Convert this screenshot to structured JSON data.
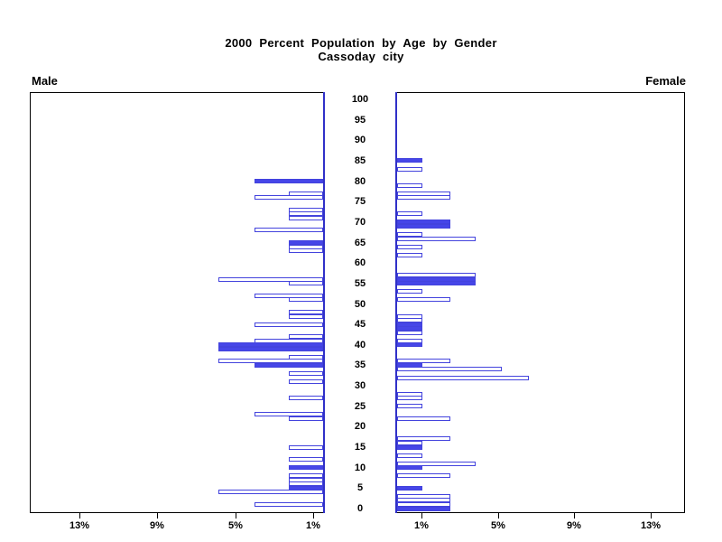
{
  "header": {
    "line1": "2000 Percent Population by Age by Gender",
    "line2": "Cassoday city"
  },
  "panels": {
    "male_label": "Male",
    "female_label": "Female"
  },
  "colors": {
    "bar_fill_blue": "#4646e8",
    "bar_outline_blue": "#4343dd",
    "axis_line_blue": "#3030c8",
    "frame_black": "#000000",
    "background": "#ffffff"
  },
  "chart_data": {
    "type": "bar",
    "variant": "population-pyramid",
    "title": "2000 Percent Population by Age by Gender",
    "subtitle": "Cassoday city",
    "orientation": "horizontal, mirrored; male bars grow right-to-left, female bars grow left-to-right",
    "age_axis": {
      "label_position": "center",
      "min": 0,
      "max": 100,
      "tick_step": 5
    },
    "pct_axis": {
      "tick_values": [
        1,
        5,
        9,
        13
      ],
      "tick_labels": [
        "1%",
        "5%",
        "9%",
        "13%"
      ],
      "max_pct": 15.5,
      "grid": false
    },
    "legend": "none; solid blue = highlighted ages, white with blue outline = other ages",
    "series": [
      {
        "name": "Male",
        "unit": "percent",
        "bars": [
          {
            "age": 80,
            "pct": 3.6,
            "filled": true
          },
          {
            "age": 77,
            "pct": 1.8,
            "filled": false
          },
          {
            "age": 76,
            "pct": 3.6,
            "filled": false
          },
          {
            "age": 73,
            "pct": 1.8,
            "filled": false
          },
          {
            "age": 72,
            "pct": 1.8,
            "filled": false
          },
          {
            "age": 71,
            "pct": 1.8,
            "filled": false
          },
          {
            "age": 68,
            "pct": 3.6,
            "filled": false
          },
          {
            "age": 65,
            "pct": 1.8,
            "filled": true
          },
          {
            "age": 64,
            "pct": 1.8,
            "filled": false
          },
          {
            "age": 63,
            "pct": 1.8,
            "filled": false
          },
          {
            "age": 56,
            "pct": 5.5,
            "filled": false
          },
          {
            "age": 55,
            "pct": 1.8,
            "filled": false
          },
          {
            "age": 52,
            "pct": 3.6,
            "filled": false
          },
          {
            "age": 51,
            "pct": 1.8,
            "filled": false
          },
          {
            "age": 48,
            "pct": 1.8,
            "filled": false
          },
          {
            "age": 47,
            "pct": 1.8,
            "filled": false
          },
          {
            "age": 45,
            "pct": 3.6,
            "filled": false
          },
          {
            "age": 42,
            "pct": 1.8,
            "filled": false
          },
          {
            "age": 41,
            "pct": 3.6,
            "filled": false
          },
          {
            "age": 40,
            "pct": 5.5,
            "filled": true
          },
          {
            "age": 39,
            "pct": 5.5,
            "filled": true
          },
          {
            "age": 37,
            "pct": 1.8,
            "filled": false
          },
          {
            "age": 36,
            "pct": 5.5,
            "filled": false
          },
          {
            "age": 35,
            "pct": 3.6,
            "filled": true
          },
          {
            "age": 33,
            "pct": 1.8,
            "filled": false
          },
          {
            "age": 31,
            "pct": 1.8,
            "filled": false
          },
          {
            "age": 27,
            "pct": 1.8,
            "filled": false
          },
          {
            "age": 23,
            "pct": 3.6,
            "filled": false
          },
          {
            "age": 22,
            "pct": 1.8,
            "filled": false
          },
          {
            "age": 15,
            "pct": 1.8,
            "filled": false
          },
          {
            "age": 12,
            "pct": 1.8,
            "filled": false
          },
          {
            "age": 10,
            "pct": 1.8,
            "filled": true
          },
          {
            "age": 8,
            "pct": 1.8,
            "filled": false
          },
          {
            "age": 7,
            "pct": 1.8,
            "filled": false
          },
          {
            "age": 6,
            "pct": 1.8,
            "filled": false
          },
          {
            "age": 5,
            "pct": 1.8,
            "filled": true
          },
          {
            "age": 4,
            "pct": 5.5,
            "filled": false
          },
          {
            "age": 1,
            "pct": 3.6,
            "filled": false
          }
        ]
      },
      {
        "name": "Female",
        "unit": "percent",
        "bars": [
          {
            "age": 85,
            "pct": 1.3,
            "filled": true
          },
          {
            "age": 83,
            "pct": 1.3,
            "filled": false
          },
          {
            "age": 79,
            "pct": 1.3,
            "filled": false
          },
          {
            "age": 77,
            "pct": 2.7,
            "filled": false
          },
          {
            "age": 76,
            "pct": 2.7,
            "filled": false
          },
          {
            "age": 72,
            "pct": 1.3,
            "filled": false
          },
          {
            "age": 70,
            "pct": 2.7,
            "filled": true
          },
          {
            "age": 69,
            "pct": 2.7,
            "filled": true
          },
          {
            "age": 67,
            "pct": 1.3,
            "filled": false
          },
          {
            "age": 66,
            "pct": 4.0,
            "filled": false
          },
          {
            "age": 64,
            "pct": 1.3,
            "filled": false
          },
          {
            "age": 62,
            "pct": 1.3,
            "filled": false
          },
          {
            "age": 57,
            "pct": 4.0,
            "filled": false
          },
          {
            "age": 56,
            "pct": 4.0,
            "filled": true
          },
          {
            "age": 55,
            "pct": 4.0,
            "filled": true
          },
          {
            "age": 53,
            "pct": 1.3,
            "filled": false
          },
          {
            "age": 51,
            "pct": 2.7,
            "filled": false
          },
          {
            "age": 47,
            "pct": 1.3,
            "filled": false
          },
          {
            "age": 46,
            "pct": 1.3,
            "filled": false
          },
          {
            "age": 45,
            "pct": 1.3,
            "filled": true
          },
          {
            "age": 44,
            "pct": 1.3,
            "filled": true
          },
          {
            "age": 43,
            "pct": 1.3,
            "filled": false
          },
          {
            "age": 41,
            "pct": 1.3,
            "filled": false
          },
          {
            "age": 40,
            "pct": 1.3,
            "filled": true
          },
          {
            "age": 36,
            "pct": 2.7,
            "filled": false
          },
          {
            "age": 35,
            "pct": 1.3,
            "filled": true
          },
          {
            "age": 34,
            "pct": 5.3,
            "filled": false
          },
          {
            "age": 32,
            "pct": 6.7,
            "filled": false
          },
          {
            "age": 28,
            "pct": 1.3,
            "filled": false
          },
          {
            "age": 27,
            "pct": 1.3,
            "filled": false
          },
          {
            "age": 25,
            "pct": 1.3,
            "filled": false
          },
          {
            "age": 22,
            "pct": 2.7,
            "filled": false
          },
          {
            "age": 17,
            "pct": 2.7,
            "filled": false
          },
          {
            "age": 16,
            "pct": 1.3,
            "filled": false
          },
          {
            "age": 15,
            "pct": 1.3,
            "filled": true
          },
          {
            "age": 13,
            "pct": 1.3,
            "filled": false
          },
          {
            "age": 11,
            "pct": 4.0,
            "filled": false
          },
          {
            "age": 10,
            "pct": 1.3,
            "filled": true
          },
          {
            "age": 8,
            "pct": 2.7,
            "filled": false
          },
          {
            "age": 5,
            "pct": 1.3,
            "filled": true
          },
          {
            "age": 3,
            "pct": 2.7,
            "filled": false
          },
          {
            "age": 2,
            "pct": 2.7,
            "filled": false
          },
          {
            "age": 1,
            "pct": 2.7,
            "filled": false
          },
          {
            "age": 0,
            "pct": 2.7,
            "filled": true
          }
        ]
      }
    ]
  }
}
